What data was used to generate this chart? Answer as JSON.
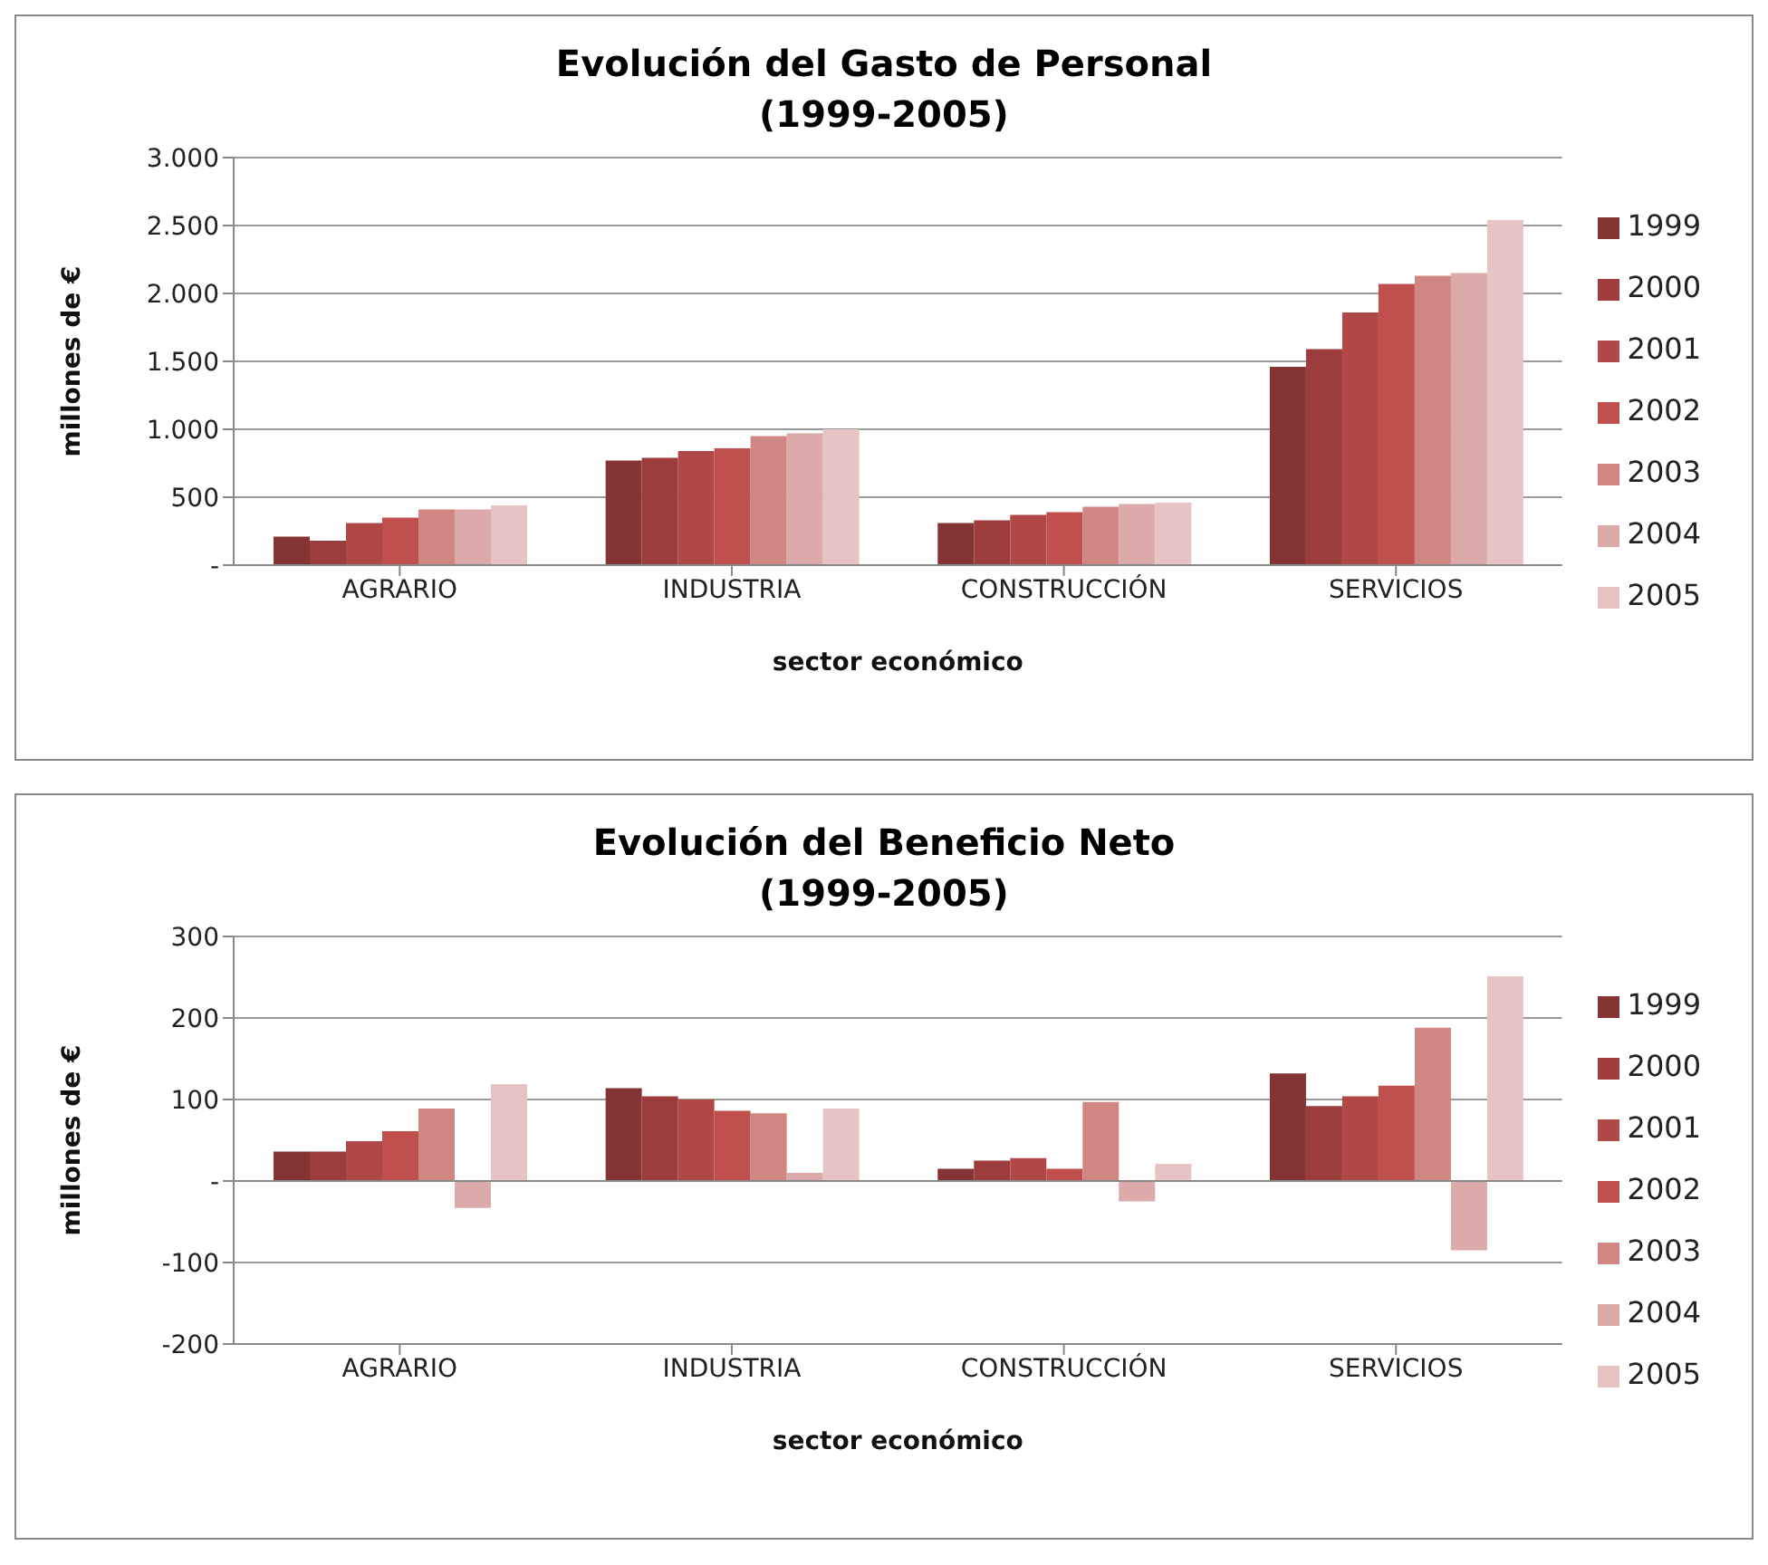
{
  "chart_data": [
    {
      "type": "bar",
      "title": "Evolución del Gasto de Personal",
      "subtitle": "(1999-2005)",
      "xlabel": "sector económico",
      "ylabel": "millones de €",
      "categories": [
        "AGRARIO",
        "INDUSTRIA",
        "CONSTRUCCIÓN",
        "SERVICIOS"
      ],
      "series": [
        {
          "name": "1999",
          "color": "#843434",
          "values": [
            210,
            770,
            310,
            1460
          ]
        },
        {
          "name": "2000",
          "color": "#9c3c3c",
          "values": [
            180,
            790,
            330,
            1590
          ]
        },
        {
          "name": "2001",
          "color": "#b04848",
          "values": [
            310,
            840,
            370,
            1860
          ]
        },
        {
          "name": "2002",
          "color": "#c0504d",
          "values": [
            350,
            860,
            390,
            2070
          ]
        },
        {
          "name": "2003",
          "color": "#d08682",
          "values": [
            410,
            950,
            430,
            2130
          ]
        },
        {
          "name": "2004",
          "color": "#dcaaa8",
          "values": [
            410,
            970,
            450,
            2150
          ]
        },
        {
          "name": "2005",
          "color": "#e6c4c4",
          "values": [
            440,
            1000,
            460,
            2540
          ]
        }
      ],
      "ylim": [
        0,
        3000
      ],
      "yticks": [
        {
          "value": 0,
          "label": "-"
        },
        {
          "value": 500,
          "label": "500"
        },
        {
          "value": 1000,
          "label": "1.000"
        },
        {
          "value": 1500,
          "label": "1.500"
        },
        {
          "value": 2000,
          "label": "2.000"
        },
        {
          "value": 2500,
          "label": "2.500"
        },
        {
          "value": 3000,
          "label": "3.000"
        }
      ],
      "grid": "y",
      "legend": "right"
    },
    {
      "type": "bar",
      "title": "Evolución del Beneficio Neto",
      "subtitle": "(1999-2005)",
      "xlabel": "sector económico",
      "ylabel": "millones de €",
      "categories": [
        "AGRARIO",
        "INDUSTRIA",
        "CONSTRUCCIÓN",
        "SERVICIOS"
      ],
      "series": [
        {
          "name": "1999",
          "color": "#843434",
          "values": [
            36,
            114,
            15,
            132
          ]
        },
        {
          "name": "2000",
          "color": "#9c3c3c",
          "values": [
            36,
            104,
            25,
            92
          ]
        },
        {
          "name": "2001",
          "color": "#b04848",
          "values": [
            49,
            100,
            28,
            104
          ]
        },
        {
          "name": "2002",
          "color": "#c0504d",
          "values": [
            61,
            86,
            15,
            117
          ]
        },
        {
          "name": "2003",
          "color": "#d08682",
          "values": [
            89,
            83,
            97,
            188
          ]
        },
        {
          "name": "2004",
          "color": "#dcaaa8",
          "values": [
            -33,
            10,
            -25,
            -85
          ]
        },
        {
          "name": "2005",
          "color": "#e6c4c4",
          "values": [
            119,
            89,
            21,
            251
          ]
        }
      ],
      "ylim": [
        -200,
        300
      ],
      "yticks": [
        -200,
        -100,
        {
          "value": 0,
          "label": "-"
        },
        100,
        200,
        300
      ],
      "grid": "y",
      "legend": "right"
    }
  ]
}
